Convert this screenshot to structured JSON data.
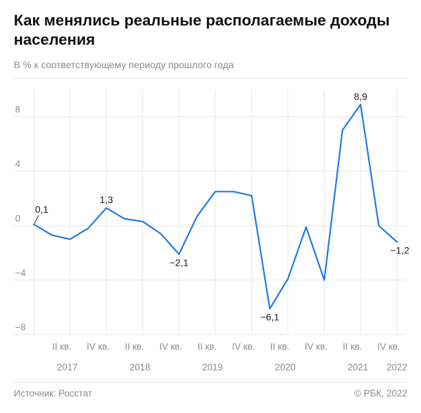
{
  "header": {
    "title": "Как менялись реальные располагаемые доходы населения",
    "subtitle": "В % к соответствующему периоду прошлого года"
  },
  "footer": {
    "source": "Источник: Росстат",
    "copyright": "© РБК, 2022"
  },
  "colors": {
    "line": "#1f7ae0",
    "grid": "#e6e6e6",
    "axis_text": "#8a8a8a",
    "label_text": "#1a1a1a"
  },
  "chart_data": {
    "type": "line",
    "title": "Как менялись реальные располагаемые доходы населения",
    "subtitle": "В % к соответствующему периоду прошлого года",
    "x": [
      "2017 I кв.",
      "2017 II кв.",
      "2017 III кв.",
      "2017 IV кв.",
      "2018 I кв.",
      "2018 II кв.",
      "2018 III кв.",
      "2018 IV кв.",
      "2019 I кв.",
      "2019 II кв.",
      "2019 III кв.",
      "2019 IV кв.",
      "2020 I кв.",
      "2020 II кв.",
      "2020 III кв.",
      "2020 IV кв.",
      "2021 I кв.",
      "2021 II кв.",
      "2021 III кв.",
      "2021 IV кв.",
      "2022 I кв."
    ],
    "series": [
      {
        "values": [
          0.1,
          -0.7,
          -1.0,
          -0.2,
          1.3,
          0.5,
          0.3,
          -0.6,
          -2.1,
          0.7,
          2.5,
          2.5,
          2.2,
          -6.1,
          -3.9,
          -0.1,
          -4.0,
          7.0,
          8.9,
          0.0,
          -1.2
        ]
      }
    ],
    "ylim": [
      -8,
      10
    ],
    "yticks": [
      "-8",
      "-4",
      "0",
      "4",
      "8"
    ],
    "xticks": [
      "II кв.",
      "IV кв.",
      "II кв.",
      "IV кв.",
      "II кв.",
      "IV кв.",
      "II кв.",
      "IV кв.",
      "II кв.",
      "IV кв."
    ],
    "years": [
      "2017",
      "2018",
      "2019",
      "2020",
      "2021",
      "2022"
    ],
    "data_labels": [
      {
        "index": 0,
        "text": "0,1",
        "pos": "above"
      },
      {
        "index": 4,
        "text": "1,3",
        "pos": "above"
      },
      {
        "index": 8,
        "text": "−2,1",
        "pos": "below"
      },
      {
        "index": 13,
        "text": "−6,1",
        "pos": "below"
      },
      {
        "index": 18,
        "text": "8,9",
        "pos": "above"
      },
      {
        "index": 20,
        "text": "−1,2",
        "pos": "below"
      }
    ],
    "grid": true,
    "legend": "none"
  }
}
